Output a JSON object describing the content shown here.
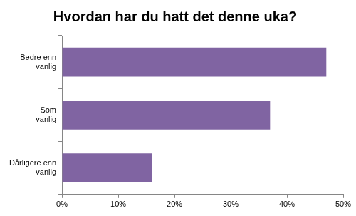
{
  "chart_data": {
    "type": "bar",
    "orientation": "horizontal",
    "title": "Hvordan har du hatt det denne uka?",
    "categories": [
      "Bedre enn vanlig",
      "Som vanlig",
      "Dårligere enn vanlig"
    ],
    "values": [
      47,
      37,
      16
    ],
    "color": "#8064a2",
    "xlim": [
      0,
      50
    ],
    "xticks": [
      {
        "value": 0,
        "label": "0%"
      },
      {
        "value": 10,
        "label": "10%"
      },
      {
        "value": 20,
        "label": "20%"
      },
      {
        "value": 30,
        "label": "30%"
      },
      {
        "value": 40,
        "label": "40%"
      },
      {
        "value": 50,
        "label": "50%"
      }
    ],
    "grid": false
  }
}
